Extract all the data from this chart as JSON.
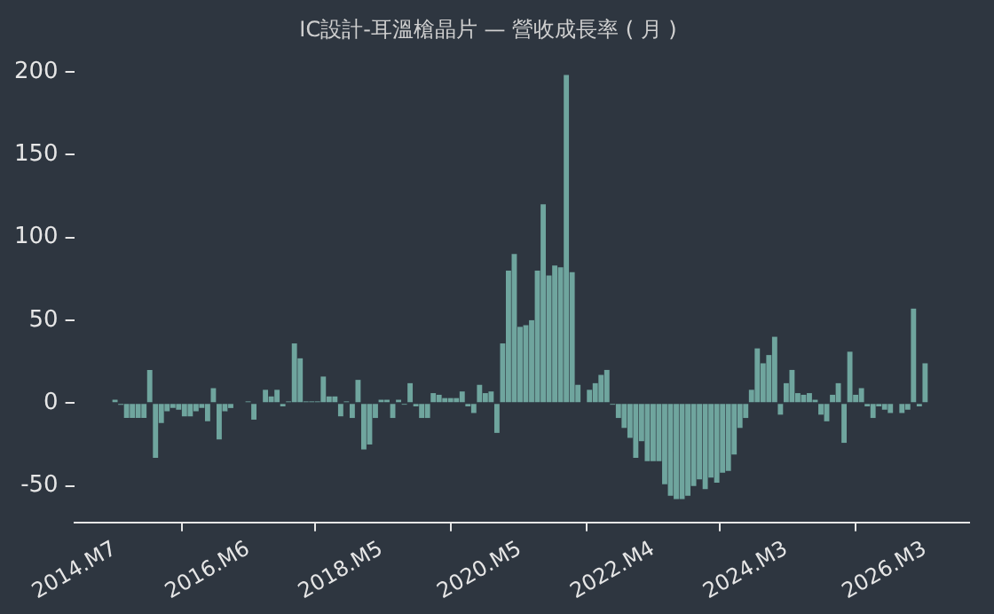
{
  "chart_data": {
    "type": "bar",
    "title": "IC設計-耳溫槍晶片 — 營收成長率 ( 月 )",
    "categories": [
      "2014.M7",
      null,
      null,
      null,
      null,
      null,
      null,
      null,
      null,
      null,
      null,
      null,
      null,
      null,
      null,
      null,
      null,
      null,
      null,
      null,
      null,
      null,
      null,
      "2016.M6",
      null,
      null,
      null,
      null,
      null,
      null,
      null,
      null,
      null,
      null,
      null,
      null,
      null,
      null,
      null,
      null,
      null,
      null,
      null,
      null,
      null,
      null,
      "2018.M5",
      null,
      null,
      null,
      null,
      null,
      null,
      null,
      null,
      null,
      null,
      null,
      null,
      null,
      null,
      null,
      null,
      null,
      null,
      null,
      null,
      null,
      null,
      null,
      "2020.M5",
      null,
      null,
      null,
      null,
      null,
      null,
      null,
      null,
      null,
      null,
      null,
      null,
      null,
      null,
      null,
      null,
      null,
      null,
      null,
      null,
      null,
      null,
      "2022.M4",
      null,
      null,
      null,
      null,
      null,
      null,
      null,
      null,
      null,
      null,
      null,
      null,
      null,
      null,
      null,
      null,
      null,
      null,
      null,
      null,
      null,
      null,
      "2024.M3",
      null,
      null,
      null,
      null,
      null,
      null,
      null,
      null,
      null,
      null,
      null,
      null,
      null,
      null,
      null,
      null,
      null,
      null,
      null,
      null,
      null,
      null,
      null,
      "2026.M3"
    ],
    "values": [
      2,
      -1,
      -9,
      -9,
      -9,
      -9,
      20,
      -33,
      -12,
      -5,
      -3,
      -4,
      -8,
      -8,
      -5,
      -3,
      -11,
      9,
      -22,
      -5,
      -3,
      0,
      0,
      1,
      -10,
      0,
      8,
      4,
      8,
      -2,
      1,
      36,
      27,
      1,
      1,
      1,
      16,
      4,
      4,
      -8,
      1,
      -9,
      14,
      -28,
      -25,
      -9,
      2,
      2,
      -9,
      2,
      -1,
      12,
      -2,
      -9,
      -9,
      6,
      5,
      3,
      3,
      3,
      7,
      -2,
      -6,
      11,
      6,
      7,
      -18,
      36,
      80,
      90,
      46,
      47,
      50,
      80,
      120,
      77,
      83,
      82,
      198,
      79,
      11,
      0,
      8,
      12,
      17,
      20,
      -1,
      -9,
      -15,
      -21,
      -33,
      -23,
      -35,
      -35,
      -35,
      -49,
      -56,
      -58,
      -58,
      -56,
      -50,
      -46,
      -52,
      -45,
      -48,
      -42,
      -41,
      -31,
      -15,
      -9,
      8,
      33,
      24,
      29,
      40,
      -7,
      12,
      20,
      6,
      5,
      6,
      2,
      -7,
      -11,
      5,
      12,
      -24,
      31,
      5,
      9,
      -2,
      -9,
      -2,
      -4,
      -6,
      0,
      -6,
      -4,
      57,
      -2,
      24
    ],
    "color": "#6fa59e",
    "ylim": [
      -72,
      200
    ],
    "yticks": [
      -50,
      0,
      50,
      100,
      150,
      200
    ],
    "grid": false,
    "legend": false
  }
}
